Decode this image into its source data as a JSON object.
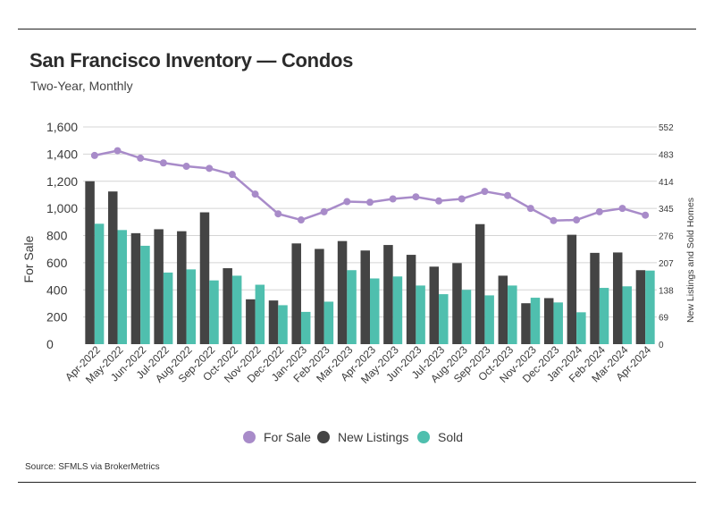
{
  "header": {
    "title": "San Francisco Inventory — Condos",
    "subtitle": "Two-Year, Monthly"
  },
  "footer": {
    "source": "Source:  SFMLS via BrokerMetrics"
  },
  "colors": {
    "for_sale": "#a88bc9",
    "new_listings": "#444444",
    "sold": "#4fbfae",
    "grid": "#d4d4d4"
  },
  "chart_data": {
    "type": "bar",
    "categories": [
      "Apr-2022",
      "May-2022",
      "Jun-2022",
      "Jul-2022",
      "Aug-2022",
      "Sep-2022",
      "Oct-2022",
      "Nov-2022",
      "Dec-2022",
      "Jan-2023",
      "Feb-2023",
      "Mar-2023",
      "Apr-2023",
      "May-2023",
      "Jun-2023",
      "Jul-2023",
      "Aug-2023",
      "Sep-2023",
      "Oct-2023",
      "Nov-2023",
      "Dec-2023",
      "Jan-2024",
      "Feb-2024",
      "Mar-2024",
      "Apr-2024"
    ],
    "series": [
      {
        "name": "For Sale",
        "type": "line",
        "axis": "left",
        "values": [
          1390,
          1425,
          1370,
          1335,
          1310,
          1295,
          1250,
          1105,
          960,
          915,
          975,
          1050,
          1045,
          1070,
          1085,
          1055,
          1070,
          1125,
          1095,
          1000,
          910,
          915,
          975,
          1000,
          950
        ]
      },
      {
        "name": "New Listings",
        "type": "bar",
        "axis": "right",
        "values": [
          414,
          388,
          282,
          292,
          287,
          335,
          193,
          114,
          111,
          256,
          242,
          262,
          238,
          252,
          227,
          197,
          206,
          305,
          174,
          104,
          117,
          278,
          232,
          233,
          188
        ]
      },
      {
        "name": "Sold",
        "type": "bar",
        "axis": "right",
        "values": [
          306,
          290,
          250,
          182,
          190,
          162,
          174,
          151,
          99,
          82,
          108,
          188,
          167,
          172,
          149,
          127,
          138,
          124,
          149,
          118,
          106,
          81,
          143,
          147,
          187
        ]
      }
    ],
    "left_axis": {
      "label": "For Sale",
      "ticks": [
        "1,600",
        "1,400",
        "1,200",
        "1,000",
        "800",
        "600",
        "400",
        "200",
        "0"
      ],
      "ylim": [
        0,
        1600
      ]
    },
    "right_axis": {
      "label": "New Listings and Sold Homes",
      "ticks": [
        "552",
        "483",
        "414",
        "345",
        "276",
        "207",
        "138",
        "69",
        "0"
      ],
      "ylim": [
        0,
        552
      ]
    },
    "grid": true,
    "legend": {
      "position": "bottom",
      "items": [
        "For Sale",
        "New Listings",
        "Sold"
      ]
    }
  }
}
